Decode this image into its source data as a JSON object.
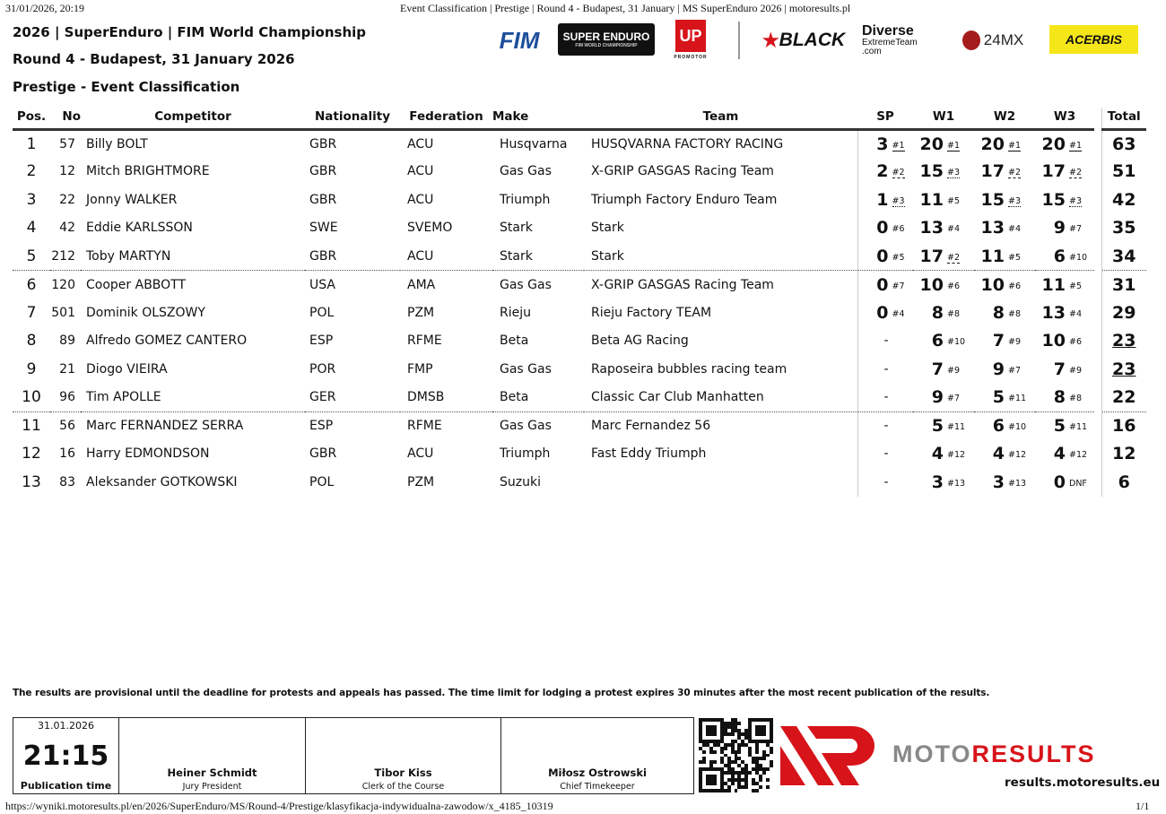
{
  "browser": {
    "datetime": "31/01/2026, 20:19",
    "title": "Event Classification | Prestige | Round 4 - Budapest, 31 January | MS SuperEnduro 2026 | motoresults.pl",
    "url": "https://wyniki.motoresults.pl/en/2026/SuperEnduro/MS/Round-4/Prestige/klasyfikacja-indywidualna-zawodow/x_4185_10319",
    "page": "1/1"
  },
  "header": {
    "line1": "2026 | SuperEnduro | FIM World Championship",
    "line2": "Round 4 - Budapest, 31 January 2026",
    "line3": "Prestige - Event Classification"
  },
  "logos": {
    "fim": "FIM",
    "superenduro": "SUPER ENDURO",
    "superenduro_sub": "FIM WORLD CHAMPIONSHIP",
    "sportup": "UP",
    "promotor": "PROMOTOR",
    "black": "BLACK",
    "diverse": "Diverse",
    "diverse_sub": "ExtremeTeam .com",
    "mx": "24MX",
    "acerbis": "ACERBIS",
    "brand_red": "#d7141a",
    "acerbis_yellow": "#f5e61a"
  },
  "columns": [
    "Pos.",
    "No",
    "Competitor",
    "Nationality",
    "Federation",
    "Make",
    "Team",
    "SP",
    "W1",
    "W2",
    "W3",
    "Total"
  ],
  "rows": [
    {
      "pos": "1",
      "no": "57",
      "name": "Billy BOLT",
      "nat": "GBR",
      "fed": "ACU",
      "make": "Husqvarna",
      "team": "HUSQVARNA FACTORY RACING",
      "sp": [
        "3",
        "#1"
      ],
      "w1": [
        "20",
        "#1"
      ],
      "w2": [
        "20",
        "#1"
      ],
      "w3": [
        "20",
        "#1"
      ],
      "total": "63"
    },
    {
      "pos": "2",
      "no": "12",
      "name": "Mitch BRIGHTMORE",
      "nat": "GBR",
      "fed": "ACU",
      "make": "Gas Gas",
      "team": "X-GRIP GASGAS Racing Team",
      "sp": [
        "2",
        "#2"
      ],
      "w1": [
        "15",
        "#3"
      ],
      "w2": [
        "17",
        "#2"
      ],
      "w3": [
        "17",
        "#2"
      ],
      "total": "51"
    },
    {
      "pos": "3",
      "no": "22",
      "name": "Jonny WALKER",
      "nat": "GBR",
      "fed": "ACU",
      "make": "Triumph",
      "team": "Triumph Factory Enduro Team",
      "sp": [
        "1",
        "#3"
      ],
      "w1": [
        "11",
        "#5"
      ],
      "w2": [
        "15",
        "#3"
      ],
      "w3": [
        "15",
        "#3"
      ],
      "total": "42"
    },
    {
      "pos": "4",
      "no": "42",
      "name": "Eddie KARLSSON",
      "nat": "SWE",
      "fed": "SVEMO",
      "make": "Stark",
      "team": "Stark",
      "sp": [
        "0",
        "#6"
      ],
      "w1": [
        "13",
        "#4"
      ],
      "w2": [
        "13",
        "#4"
      ],
      "w3": [
        "9",
        "#7"
      ],
      "total": "35"
    },
    {
      "pos": "5",
      "no": "212",
      "name": "Toby MARTYN",
      "nat": "GBR",
      "fed": "ACU",
      "make": "Stark",
      "team": "Stark",
      "sp": [
        "0",
        "#5"
      ],
      "w1": [
        "17",
        "#2"
      ],
      "w2": [
        "11",
        "#5"
      ],
      "w3": [
        "6",
        "#10"
      ],
      "total": "34",
      "sep": true
    },
    {
      "pos": "6",
      "no": "120",
      "name": "Cooper ABBOTT",
      "nat": "USA",
      "fed": "AMA",
      "make": "Gas Gas",
      "team": "X-GRIP GASGAS Racing Team",
      "sp": [
        "0",
        "#7"
      ],
      "w1": [
        "10",
        "#6"
      ],
      "w2": [
        "10",
        "#6"
      ],
      "w3": [
        "11",
        "#5"
      ],
      "total": "31"
    },
    {
      "pos": "7",
      "no": "501",
      "name": "Dominik OLSZOWY",
      "nat": "POL",
      "fed": "PZM",
      "make": "Rieju",
      "team": "Rieju Factory TEAM",
      "sp": [
        "0",
        "#4"
      ],
      "w1": [
        "8",
        "#8"
      ],
      "w2": [
        "8",
        "#8"
      ],
      "w3": [
        "13",
        "#4"
      ],
      "total": "29"
    },
    {
      "pos": "8",
      "no": "89",
      "name": "Alfredo GOMEZ CANTERO",
      "nat": "ESP",
      "fed": "RFME",
      "make": "Beta",
      "team": "Beta AG Racing",
      "sp": [
        "-",
        ""
      ],
      "w1": [
        "6",
        "#10"
      ],
      "w2": [
        "7",
        "#9"
      ],
      "w3": [
        "10",
        "#6"
      ],
      "total": "23",
      "underline": true
    },
    {
      "pos": "9",
      "no": "21",
      "name": "Diogo VIEIRA",
      "nat": "POR",
      "fed": "FMP",
      "make": "Gas Gas",
      "team": "Raposeira bubbles racing team",
      "sp": [
        "-",
        ""
      ],
      "w1": [
        "7",
        "#9"
      ],
      "w2": [
        "9",
        "#7"
      ],
      "w3": [
        "7",
        "#9"
      ],
      "total": "23",
      "underline": true
    },
    {
      "pos": "10",
      "no": "96",
      "name": "Tim APOLLE",
      "nat": "GER",
      "fed": "DMSB",
      "make": "Beta",
      "team": "Classic Car Club Manhatten",
      "sp": [
        "-",
        ""
      ],
      "w1": [
        "9",
        "#7"
      ],
      "w2": [
        "5",
        "#11"
      ],
      "w3": [
        "8",
        "#8"
      ],
      "total": "22",
      "sep": true
    },
    {
      "pos": "11",
      "no": "56",
      "name": "Marc FERNANDEZ SERRA",
      "nat": "ESP",
      "fed": "RFME",
      "make": "Gas Gas",
      "team": "Marc Fernandez 56",
      "sp": [
        "-",
        ""
      ],
      "w1": [
        "5",
        "#11"
      ],
      "w2": [
        "6",
        "#10"
      ],
      "w3": [
        "5",
        "#11"
      ],
      "total": "16"
    },
    {
      "pos": "12",
      "no": "16",
      "name": "Harry EDMONDSON",
      "nat": "GBR",
      "fed": "ACU",
      "make": "Triumph",
      "team": "Fast Eddy Triumph",
      "sp": [
        "-",
        ""
      ],
      "w1": [
        "4",
        "#12"
      ],
      "w2": [
        "4",
        "#12"
      ],
      "w3": [
        "4",
        "#12"
      ],
      "total": "12"
    },
    {
      "pos": "13",
      "no": "83",
      "name": "Aleksander GOTKOWSKI",
      "nat": "POL",
      "fed": "PZM",
      "make": "Suzuki",
      "team": "",
      "sp": [
        "-",
        ""
      ],
      "w1": [
        "3",
        "#13"
      ],
      "w2": [
        "3",
        "#13"
      ],
      "w3": [
        "0",
        "DNF"
      ],
      "total": "6"
    }
  ],
  "notice": "The results are provisional until the deadline for protests and appeals has passed. The time limit for lodging a protest expires 30 minutes after the most recent publication of the results.",
  "footer": {
    "date": "31.01.2026",
    "time": "21:15",
    "time_label": "Publication time",
    "officials": [
      {
        "name": "Heiner Schmidt",
        "role": "Jury President"
      },
      {
        "name": "Tibor Kiss",
        "role": "Clerk of the Course"
      },
      {
        "name": "Miłosz Ostrowski",
        "role": "Chief Timekeeper"
      }
    ],
    "brand_moto": "MOTO",
    "brand_results": "RESULTS",
    "site": "results.motoresults.eu"
  }
}
